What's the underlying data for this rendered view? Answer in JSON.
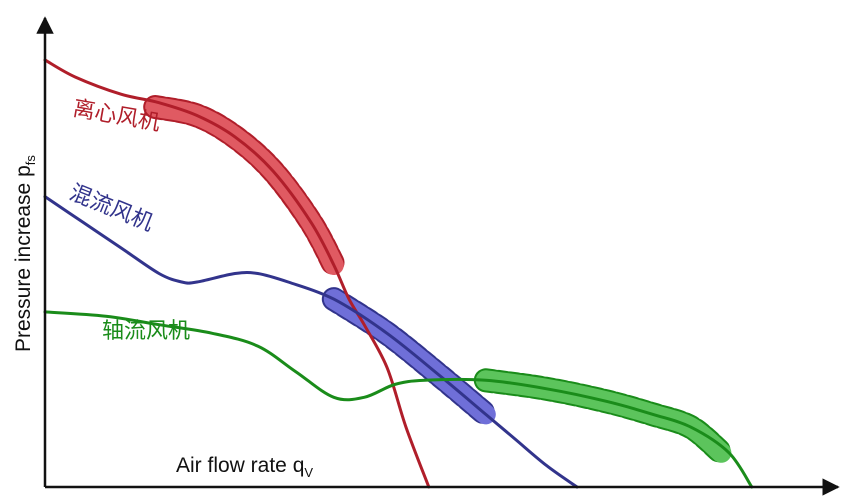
{
  "chart_data": {
    "type": "line",
    "title": "",
    "xlabel": "Air flow rate q",
    "xlabel_sub": "V",
    "ylabel": "Pressure increase  p",
    "ylabel_sub": "fs",
    "xlim": [
      0,
      100
    ],
    "ylim": [
      0,
      100
    ],
    "grid": false,
    "legend": "labels placed next to curves",
    "series": [
      {
        "name": "离心风机",
        "color": "#b01e2a",
        "x": [
          0,
          4,
          10,
          15,
          20,
          25,
          30,
          35,
          38,
          40,
          42,
          45,
          47.5,
          50.5
        ],
        "y": [
          100,
          96,
          92,
          90,
          87,
          82,
          74,
          62,
          52,
          44,
          38,
          28,
          14,
          0
        ],
        "band_x": [
          14.5,
          20,
          25,
          30,
          35,
          38
        ],
        "band_y": [
          89,
          87,
          82,
          74,
          62,
          52
        ],
        "band_color": "#e05a62"
      },
      {
        "name": "混流风机",
        "color": "#32348c",
        "x": [
          0,
          5,
          10,
          15,
          18,
          20,
          25,
          28,
          32,
          38,
          45,
          52,
          58,
          62,
          66,
          70
        ],
        "y": [
          68,
          62,
          56,
          50,
          48,
          48,
          50,
          50,
          48,
          44,
          36,
          26,
          17,
          11,
          5,
          0
        ],
        "band_x": [
          38,
          45,
          52,
          58
        ],
        "band_y": [
          44,
          36,
          26,
          17
        ],
        "band_color": "#6f6fd8"
      },
      {
        "name": "轴流风机",
        "color": "#1a8c1a",
        "x": [
          0,
          8,
          15,
          22,
          28,
          33,
          38,
          42,
          46,
          50,
          58,
          66,
          74,
          80,
          85,
          90,
          93
        ],
        "y": [
          41,
          40,
          38,
          36,
          33,
          27,
          21,
          21,
          24,
          25,
          25,
          23,
          20,
          17,
          14,
          8,
          0
        ],
        "band_x": [
          58,
          66,
          74,
          80,
          85,
          89
        ],
        "band_y": [
          25,
          23,
          20,
          17,
          14,
          8
        ],
        "band_color": "#5cc45c"
      }
    ]
  }
}
